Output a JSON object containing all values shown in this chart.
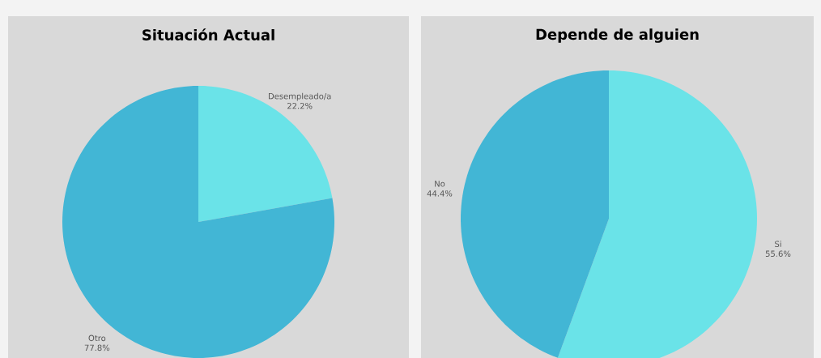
{
  "chart_data": [
    {
      "type": "pie",
      "title": "Situación Actual",
      "categories": [
        "Desempleado/a",
        "Otro"
      ],
      "values": [
        22.2,
        77.8
      ],
      "colors": [
        "#6ae3e8",
        "#42b6d5"
      ],
      "value_labels": [
        "22.2%",
        "77.8%"
      ]
    },
    {
      "type": "pie",
      "title": "Depende de alguien",
      "categories": [
        "Si",
        "No"
      ],
      "values": [
        55.6,
        44.4
      ],
      "colors": [
        "#6ae3e8",
        "#42b6d5"
      ],
      "value_labels": [
        "55.6%",
        "44.4%"
      ]
    }
  ]
}
